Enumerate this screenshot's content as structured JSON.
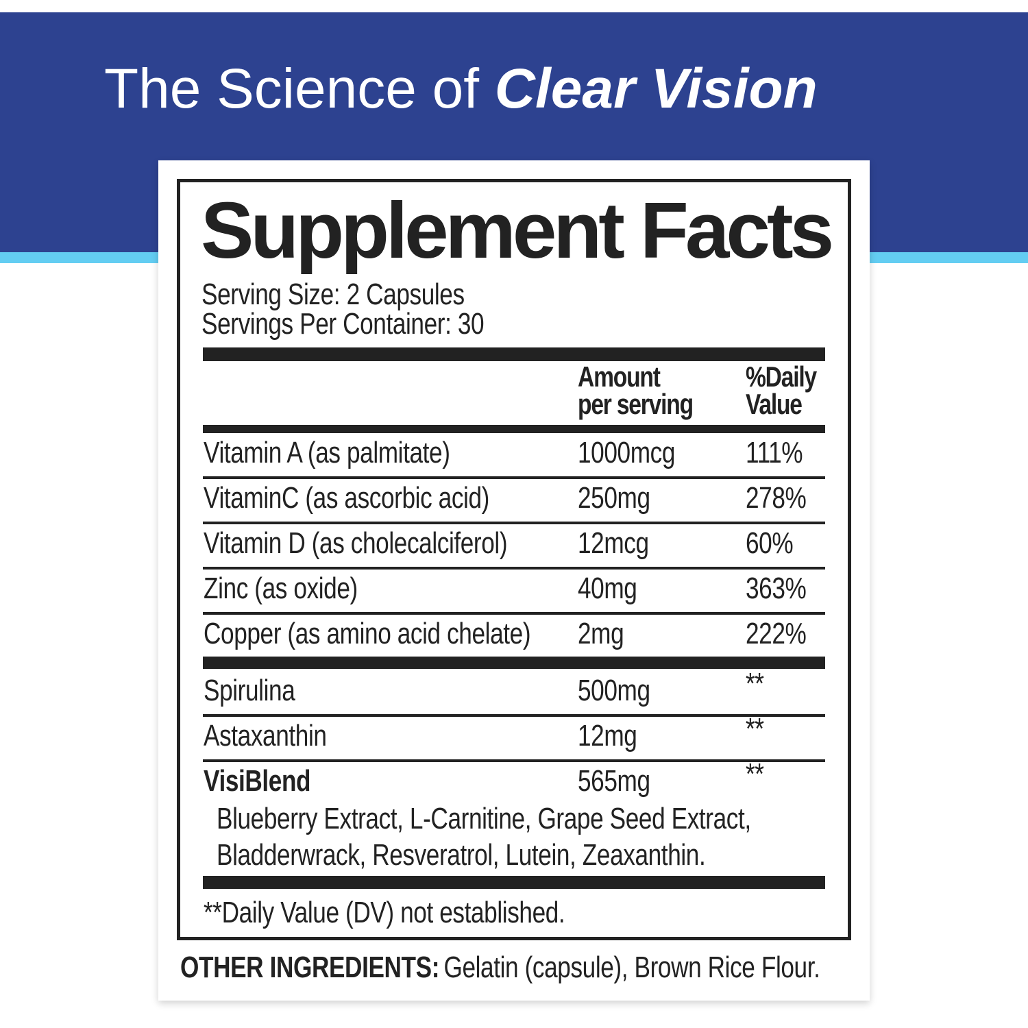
{
  "header": {
    "title_plain": "The Science of",
    "title_emphasis": "Clear Vision"
  },
  "facts": {
    "title": "Supplement Facts",
    "serving_size": "Serving Size: 2 Capsules",
    "servings_per_container": "Servings Per Container: 30",
    "column_headers": [
      [
        "Amount",
        "per serving"
      ],
      [
        "%Daily",
        "Value"
      ]
    ],
    "vitamins": [
      [
        "Vitamin A (as palmitate)",
        "1000mcg",
        "111%"
      ],
      [
        "VitaminC (as ascorbic acid)",
        "250mg",
        "278%"
      ],
      [
        "Vitamin D (as cholecalciferol)",
        "12mcg",
        "60%"
      ],
      [
        "Zinc (as oxide)",
        "40mg",
        "363%"
      ],
      [
        "Copper (as amino acid chelate)",
        "2mg",
        "222%"
      ]
    ],
    "others": [
      [
        "Spirulina",
        "500mg",
        "**"
      ],
      [
        "Astaxanthin",
        "12mg",
        "**"
      ],
      [
        "VisiBlend",
        "565mg",
        "**"
      ]
    ],
    "blend_ingredients": [
      "Blueberry Extract, L-Carnitine, Grape Seed Extract,",
      "Bladderwrack, Resveratrol, Lutein, Zeaxanthin."
    ],
    "footnote": "**Daily Value (DV) not established."
  },
  "other_ingredients": {
    "label": "OTHER INGREDIENTS:",
    "text": "Gelatin (capsule), Brown Rice Flour."
  }
}
